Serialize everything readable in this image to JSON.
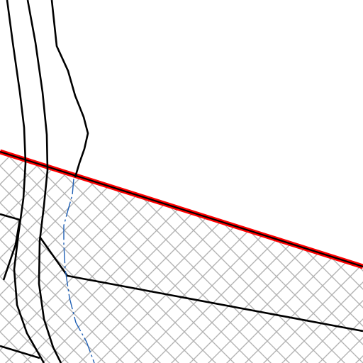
{
  "map": {
    "colors": {
      "background": "#ffffff",
      "hatch": "#b3b3b3",
      "boundary_outer": "#ff0000",
      "boundary_inner": "#000000",
      "road": "#000000",
      "stream": "#1f5fb4"
    }
  }
}
